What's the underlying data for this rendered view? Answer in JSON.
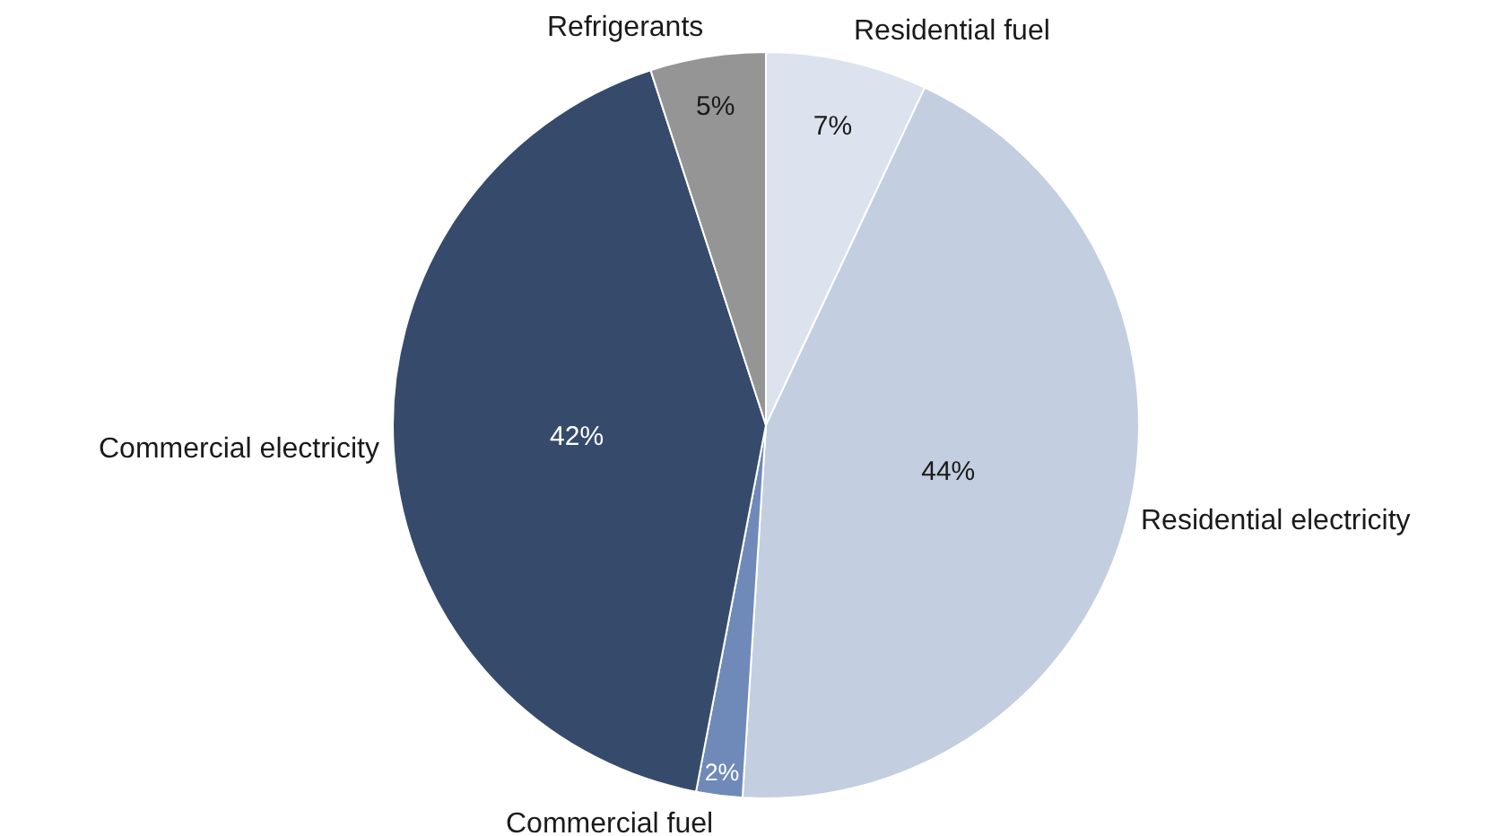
{
  "chart_data": {
    "type": "pie",
    "categories": [
      "Residential fuel",
      "Residential electricity",
      "Commercial fuel",
      "Commercial electricity",
      "Refrigerants"
    ],
    "values": [
      7,
      44,
      2,
      42,
      5
    ],
    "value_labels": [
      "7%",
      "44%",
      "2%",
      "42%",
      "5%"
    ],
    "colors": [
      "#dde3ee",
      "#c3cee0",
      "#6f8ab8",
      "#364b6b",
      "#959595"
    ],
    "legend": false
  }
}
